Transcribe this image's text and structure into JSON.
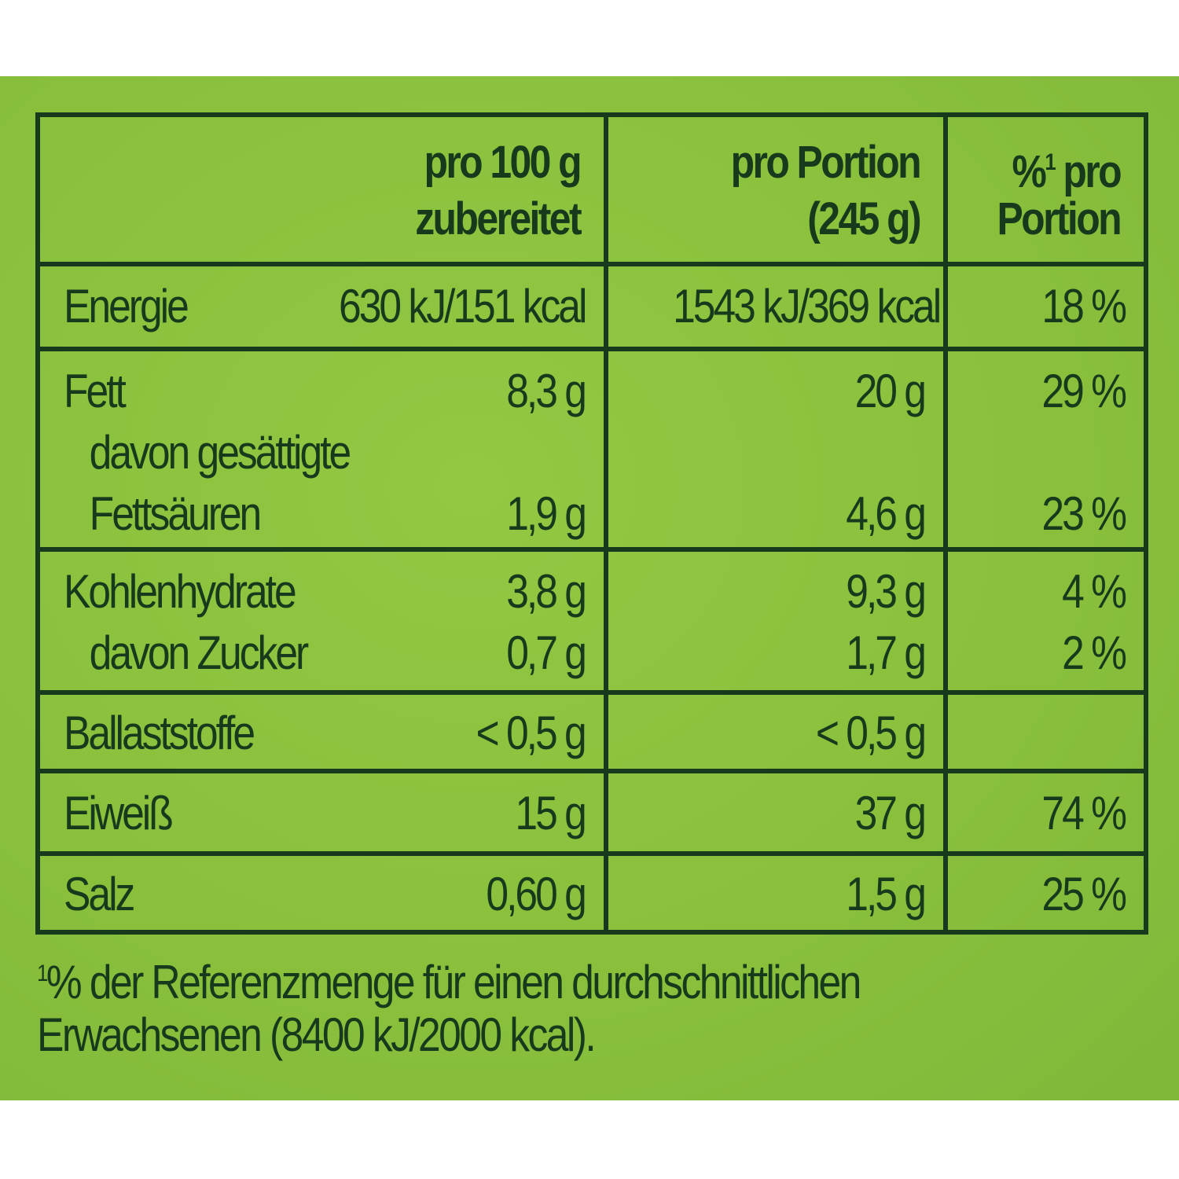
{
  "colors": {
    "background": "#88c03c",
    "text": "#183a1c"
  },
  "header": {
    "col1": [
      "pro 100 g",
      "zubereitet"
    ],
    "col2": [
      "pro Portion",
      "(245 g)"
    ],
    "col3_sup": "1",
    "col3": [
      "% pro",
      "Portion"
    ]
  },
  "rows": [
    {
      "labels": [
        "Energie"
      ],
      "per100": [
        "630 kJ/151 kcal"
      ],
      "portion": [
        "1543 kJ/369 kcal"
      ],
      "pct": [
        "18 %"
      ]
    },
    {
      "labels": [
        "Fett",
        "davon gesättigte",
        "Fettsäuren"
      ],
      "per100": [
        "8,3 g",
        "",
        "1,9 g"
      ],
      "portion": [
        "20 g",
        "",
        "4,6 g"
      ],
      "pct": [
        "29 %",
        "",
        "23 %"
      ]
    },
    {
      "labels": [
        "Kohlenhydrate",
        "davon Zucker"
      ],
      "per100": [
        "3,8 g",
        "0,7 g"
      ],
      "portion": [
        "9,3 g",
        "1,7 g"
      ],
      "pct": [
        "4 %",
        "2 %"
      ]
    },
    {
      "labels": [
        "Ballaststoffe"
      ],
      "per100": [
        "< 0,5 g"
      ],
      "portion": [
        "< 0,5 g"
      ],
      "pct": [
        ""
      ]
    },
    {
      "labels": [
        "Eiweiß"
      ],
      "per100": [
        "15 g"
      ],
      "portion": [
        "37 g"
      ],
      "pct": [
        "74 %"
      ]
    },
    {
      "labels": [
        "Salz"
      ],
      "per100": [
        "0,60 g"
      ],
      "portion": [
        "1,5 g"
      ],
      "pct": [
        "25 %"
      ]
    }
  ],
  "footnote": {
    "sup": "1",
    "line1": "% der Referenzmenge für einen durchschnittlichen",
    "line2": "Erwachsenen (8400 kJ/2000 kcal)."
  }
}
